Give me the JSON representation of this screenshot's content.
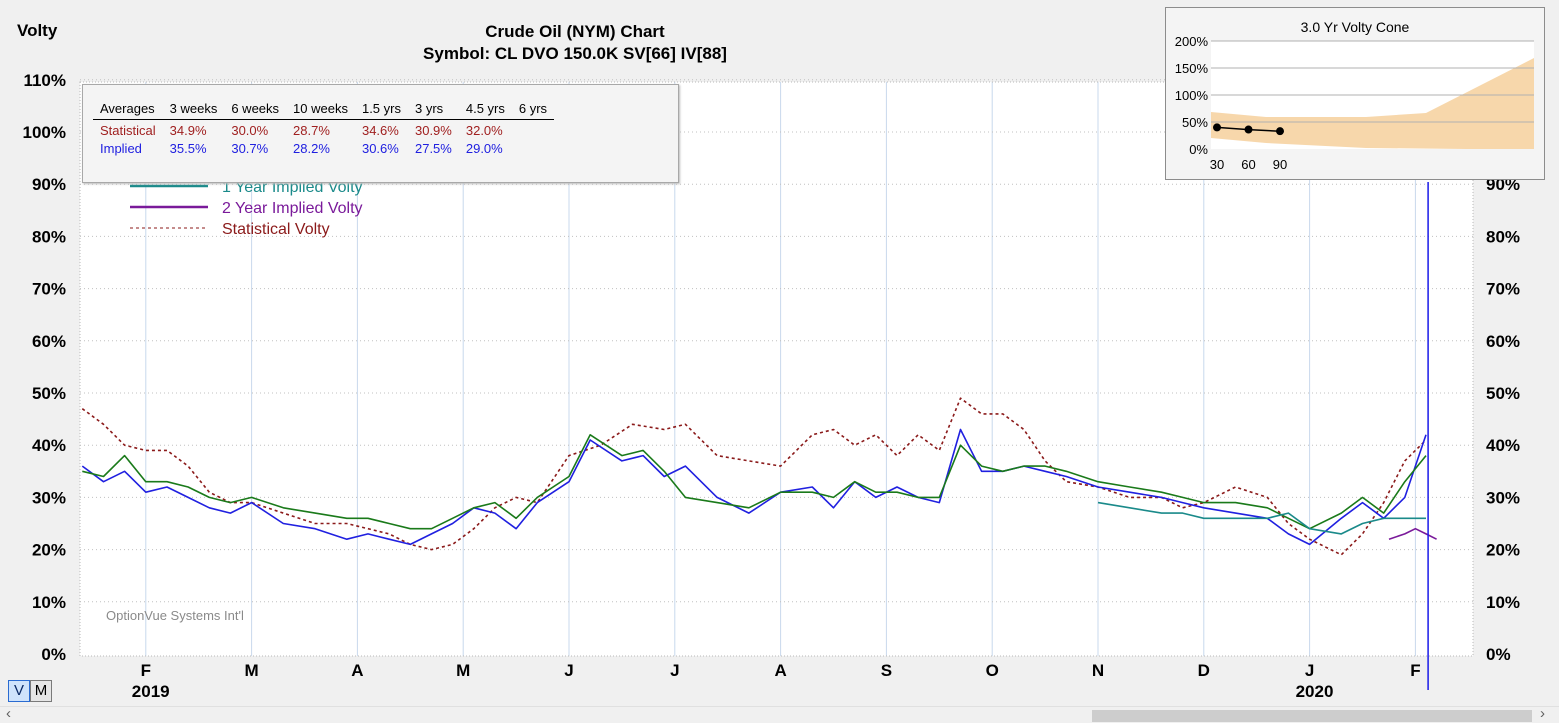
{
  "header": {
    "title": "Crude Oil (NYM) Chart",
    "subtitle": "Symbol: CL  DVO 150.0K  SV[66]  IV[88]",
    "y_axis_title": "Volty",
    "watermark": "OptionVue Systems Int'l"
  },
  "averages_table": {
    "headers": [
      "Averages",
      "3 weeks",
      "6 weeks",
      "10 weeks",
      "1.5 yrs",
      "3 yrs",
      "4.5 yrs",
      "6 yrs"
    ],
    "statistical": {
      "label": "Statistical",
      "values": [
        "34.9%",
        "30.0%",
        "28.7%",
        "34.6%",
        "30.9%",
        "32.0%",
        ""
      ]
    },
    "implied": {
      "label": "Implied",
      "values": [
        "35.5%",
        "30.7%",
        "28.2%",
        "30.6%",
        "27.5%",
        "29.0%",
        ""
      ]
    }
  },
  "legend": {
    "items": [
      {
        "label": "1 Year Implied Volty",
        "color": "#1a8a8a",
        "style": "solid"
      },
      {
        "label": "2 Year Implied Volty",
        "color": "#7a1a9a",
        "style": "solid"
      },
      {
        "label": "Statistical Volty",
        "color": "#8b1a1a",
        "style": "dashed"
      }
    ]
  },
  "cone": {
    "title": "3.0 Yr Volty Cone",
    "y_ticks": [
      "200%",
      "150%",
      "100%",
      "50%",
      "0%"
    ],
    "x_ticks": [
      "30",
      "60",
      "90"
    ],
    "points": [
      [
        30,
        40
      ],
      [
        60,
        36
      ],
      [
        90,
        33
      ]
    ]
  },
  "toggles": {
    "v": "V",
    "m": "M"
  },
  "chart_data": {
    "type": "line",
    "title": "Crude Oil (NYM) Chart",
    "ylabel": "Volty",
    "ylim": [
      0,
      110
    ],
    "y_ticks": [
      0,
      10,
      20,
      30,
      40,
      50,
      60,
      70,
      80,
      90,
      100,
      110
    ],
    "y_tick_labels_left": [
      "0%",
      "10%",
      "20%",
      "30%",
      "40%",
      "50%",
      "60%",
      "70%",
      "80%",
      "90%",
      "100%",
      "110%"
    ],
    "y_tick_labels_right": [
      "0%",
      "10%",
      "20%",
      "30%",
      "40%",
      "50%",
      "60%",
      "70%",
      "80%",
      "90%"
    ],
    "month_labels": [
      "F",
      "M",
      "A",
      "M",
      "J",
      "J",
      "A",
      "S",
      "O",
      "N",
      "D",
      "J",
      "F"
    ],
    "year_labels": [
      {
        "label": "2019",
        "month_index": 0
      },
      {
        "label": "2020",
        "month_index": 11
      }
    ],
    "x_unit": "months since Jan 2019",
    "x_range": [
      0.4,
      13.3
    ],
    "marker_x": 13.12,
    "grid": true,
    "series": [
      {
        "name": "Statistical Volty",
        "color": "#8b1a1a",
        "dash": "3,3",
        "x": [
          0.4,
          0.6,
          0.8,
          1.0,
          1.2,
          1.4,
          1.6,
          1.8,
          2.0,
          2.3,
          2.6,
          2.9,
          3.1,
          3.3,
          3.5,
          3.7,
          3.9,
          4.1,
          4.3,
          4.5,
          4.7,
          5.0,
          5.3,
          5.6,
          5.9,
          6.1,
          6.4,
          6.7,
          7.0,
          7.3,
          7.5,
          7.7,
          7.9,
          8.1,
          8.3,
          8.5,
          8.7,
          8.9,
          9.1,
          9.3,
          9.5,
          9.7,
          10.0,
          10.3,
          10.6,
          10.8,
          11.0,
          11.3,
          11.6,
          11.8,
          12.0,
          12.3,
          12.5,
          12.7,
          12.9,
          13.1
        ],
        "y": [
          47,
          44,
          40,
          39,
          39,
          36,
          31,
          29,
          29,
          27,
          25,
          25,
          24,
          23,
          21,
          20,
          21,
          24,
          28,
          30,
          29,
          38,
          40,
          44,
          43,
          44,
          38,
          37,
          36,
          42,
          43,
          40,
          42,
          38,
          42,
          39,
          49,
          46,
          46,
          43,
          37,
          33,
          32,
          30,
          30,
          28,
          29,
          32,
          30,
          25,
          22,
          19,
          23,
          29,
          37,
          41
        ]
      },
      {
        "name": "",
        "color": "#2020e0",
        "dash": "",
        "x": [
          0.4,
          0.6,
          0.8,
          1.0,
          1.2,
          1.4,
          1.6,
          1.8,
          2.0,
          2.3,
          2.6,
          2.9,
          3.1,
          3.3,
          3.5,
          3.7,
          3.9,
          4.1,
          4.3,
          4.5,
          4.7,
          5.0,
          5.2,
          5.5,
          5.7,
          5.9,
          6.1,
          6.4,
          6.7,
          7.0,
          7.3,
          7.5,
          7.7,
          7.9,
          8.1,
          8.3,
          8.5,
          8.7,
          8.9,
          9.1,
          9.3,
          9.5,
          9.7,
          10.0,
          10.3,
          10.6,
          10.8,
          11.0,
          11.3,
          11.6,
          11.8,
          12.0,
          12.3,
          12.5,
          12.7,
          12.9,
          13.1
        ],
        "y": [
          36,
          33,
          35,
          31,
          32,
          30,
          28,
          27,
          29,
          25,
          24,
          22,
          23,
          22,
          21,
          23,
          25,
          28,
          27,
          24,
          29,
          33,
          41,
          37,
          38,
          34,
          36,
          30,
          27,
          31,
          32,
          28,
          33,
          30,
          32,
          30,
          29,
          43,
          35,
          35,
          36,
          35,
          34,
          32,
          31,
          30,
          29,
          28,
          27,
          26,
          23,
          21,
          26,
          29,
          26,
          30,
          42
        ]
      },
      {
        "name": "",
        "color": "#1a7a1a",
        "dash": "",
        "x": [
          0.4,
          0.6,
          0.8,
          1.0,
          1.2,
          1.4,
          1.6,
          1.8,
          2.0,
          2.3,
          2.6,
          2.9,
          3.1,
          3.3,
          3.5,
          3.7,
          3.9,
          4.1,
          4.3,
          4.5,
          4.7,
          5.0,
          5.2,
          5.5,
          5.7,
          5.9,
          6.1,
          6.4,
          6.7,
          7.0,
          7.3,
          7.5,
          7.7,
          7.9,
          8.1,
          8.3,
          8.5,
          8.7,
          8.9,
          9.1,
          9.3,
          9.5,
          9.7,
          10.0,
          10.3,
          10.6,
          10.8,
          11.0,
          11.3,
          11.6,
          11.8,
          12.0,
          12.3,
          12.5,
          12.7,
          12.9,
          13.1
        ],
        "y": [
          35,
          34,
          38,
          33,
          33,
          32,
          30,
          29,
          30,
          28,
          27,
          26,
          26,
          25,
          24,
          24,
          26,
          28,
          29,
          26,
          30,
          34,
          42,
          38,
          39,
          35,
          30,
          29,
          28,
          31,
          31,
          30,
          33,
          31,
          31,
          30,
          30,
          40,
          36,
          35,
          36,
          36,
          35,
          33,
          32,
          31,
          30,
          29,
          29,
          28,
          26,
          24,
          27,
          30,
          27,
          33,
          38
        ]
      },
      {
        "name": "1 Year Implied Volty",
        "color": "#1a8a8a",
        "dash": "",
        "x": [
          10.0,
          10.3,
          10.6,
          10.8,
          11.0,
          11.3,
          11.6,
          11.8,
          12.0,
          12.3,
          12.5,
          12.7,
          12.9,
          13.1
        ],
        "y": [
          29,
          28,
          27,
          27,
          26,
          26,
          26,
          27,
          24,
          23,
          25,
          26,
          26,
          26
        ]
      },
      {
        "name": "2 Year Implied Volty",
        "color": "#7a1a9a",
        "dash": "",
        "x": [
          12.75,
          12.9,
          13.0,
          13.1,
          13.2
        ],
        "y": [
          22,
          23,
          24,
          23,
          22
        ]
      }
    ]
  }
}
